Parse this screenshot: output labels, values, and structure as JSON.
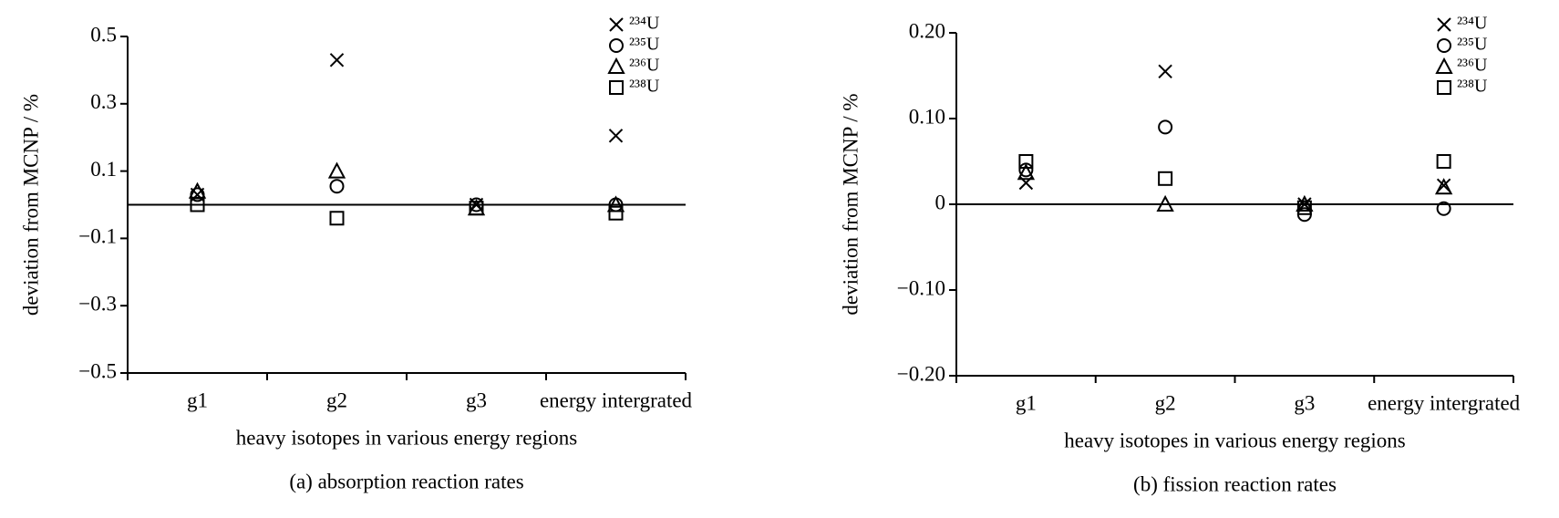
{
  "chart_data": [
    {
      "type": "scatter",
      "title": "(a) absorption reaction rates",
      "x_label": "heavy isotopes in various energy regions",
      "y_label": "deviation from MCNP / %",
      "categories": [
        "g1",
        "g2",
        "g3",
        "energy intergrated"
      ],
      "ylim": [
        -0.5,
        0.5
      ],
      "yticks": [
        {
          "value": -0.5,
          "label": "−0.5"
        },
        {
          "value": -0.3,
          "label": "−0.3"
        },
        {
          "value": -0.1,
          "label": "−0.1"
        },
        0.1,
        0.3,
        0.5
      ],
      "legend": "upper right",
      "series": [
        {
          "name": "²³⁴U",
          "marker": "x",
          "color": "#000000",
          "values": [
            0.03,
            0.43,
            0.0,
            0.205
          ]
        },
        {
          "name": "²³⁵U",
          "marker": "o",
          "color": "#000000",
          "values": [
            0.03,
            0.055,
            0.0,
            0.0
          ]
        },
        {
          "name": "²³⁶U",
          "marker": "^",
          "color": "#000000",
          "values": [
            0.04,
            0.1,
            -0.01,
            0.0
          ]
        },
        {
          "name": "²³⁸U",
          "marker": "s",
          "color": "#000000",
          "values": [
            0.0,
            -0.04,
            -0.01,
            -0.025
          ]
        }
      ]
    },
    {
      "type": "scatter",
      "title": "(b) fission reaction rates",
      "x_label": "heavy isotopes in various energy regions",
      "y_label": "deviation from MCNP / %",
      "categories": [
        "g1",
        "g2",
        "g3",
        "energy intergrated"
      ],
      "ylim": [
        -0.2,
        0.2
      ],
      "yticks": [
        {
          "value": -0.2,
          "label": "−0.20"
        },
        {
          "value": -0.1,
          "label": "−0.10"
        },
        0,
        {
          "value": 0.1,
          "label": "0.10"
        },
        {
          "value": 0.2,
          "label": "0.20"
        }
      ],
      "legend": "upper right",
      "series": [
        {
          "name": "²³⁴U",
          "marker": "x",
          "color": "#000000",
          "values": [
            0.025,
            0.155,
            0.0,
            0.022
          ]
        },
        {
          "name": "²³⁵U",
          "marker": "o",
          "color": "#000000",
          "values": [
            0.04,
            0.09,
            -0.012,
            -0.005
          ]
        },
        {
          "name": "²³⁶U",
          "marker": "^",
          "color": "#000000",
          "values": [
            0.037,
            0.0,
            0.0,
            0.02
          ]
        },
        {
          "name": "²³⁸U",
          "marker": "s",
          "color": "#000000",
          "values": [
            0.05,
            0.03,
            -0.004,
            0.05
          ]
        }
      ]
    }
  ]
}
